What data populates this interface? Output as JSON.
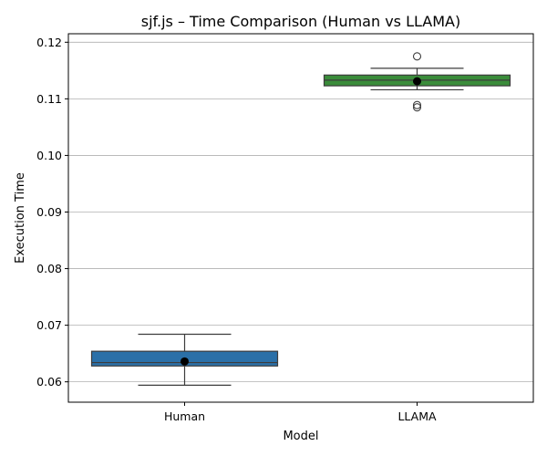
{
  "chart_data": {
    "type": "box",
    "title": "sjf.js – Time Comparison (Human vs LLAMA)",
    "xlabel": "Model",
    "ylabel": "Execution Time",
    "categories": [
      "Human",
      "LLAMA"
    ],
    "ylim": [
      0.0564,
      0.1215
    ],
    "yticks": [
      0.06,
      0.07,
      0.08,
      0.09,
      0.1,
      0.11,
      0.12
    ],
    "ytick_labels": [
      "0.06",
      "0.07",
      "0.08",
      "0.09",
      "0.10",
      "0.11",
      "0.12"
    ],
    "grid": "horizontal",
    "series": [
      {
        "category": "Human",
        "color": "#2b70a8",
        "whisker_low": 0.0594,
        "q1": 0.0628,
        "median": 0.0634,
        "q3": 0.0654,
        "whisker_high": 0.0684,
        "mean": 0.0636,
        "outliers": []
      },
      {
        "category": "LLAMA",
        "color": "#3a8c3a",
        "whisker_low": 0.1116,
        "q1": 0.1123,
        "median": 0.1133,
        "q3": 0.1142,
        "whisker_high": 0.1154,
        "mean": 0.1131,
        "outliers": [
          0.1175,
          0.1089,
          0.1085
        ]
      }
    ]
  }
}
